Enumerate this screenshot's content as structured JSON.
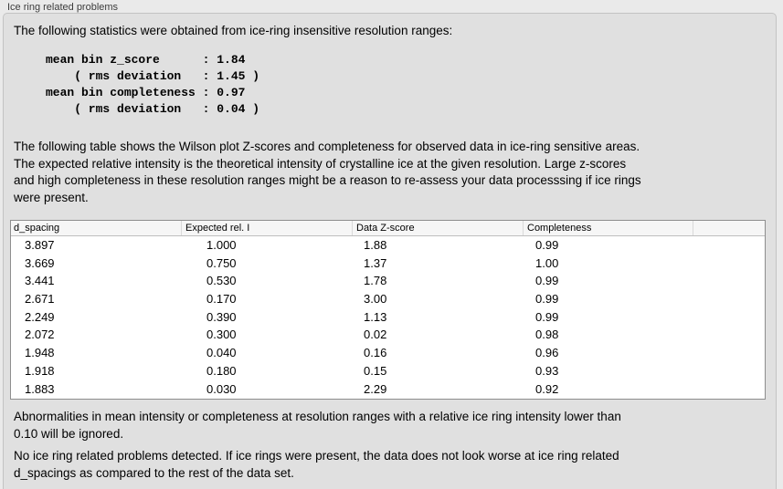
{
  "panel": {
    "title": "Ice ring related problems"
  },
  "intro": {
    "text": "The following statistics were obtained from ice-ring insensitive resolution ranges:"
  },
  "stats_block": {
    "lines": [
      "mean bin z_score      : 1.84",
      "    ( rms deviation   : 1.45 )",
      "mean bin completeness : 0.97",
      "    ( rms deviation   : 0.04 )"
    ],
    "values": {
      "mean_bin_z_score": "1.84",
      "z_score_rms_deviation": "1.45",
      "mean_bin_completeness": "0.97",
      "completeness_rms_deviation": "0.04"
    }
  },
  "table_description": "The following table shows the Wilson plot Z-scores and completeness for observed data in ice-ring sensitive areas.\nThe expected relative intensity is the theoretical intensity of crystalline ice at the given resolution. Large z-scores\nand high completeness in these resolution ranges might be a reason to re-assess your data processsing if ice rings\nwere present.",
  "table": {
    "columns": [
      "d_spacing",
      "Expected rel. I",
      "Data Z-score",
      "Completeness"
    ],
    "rows": [
      [
        "3.897",
        "1.000",
        "1.88",
        "0.99"
      ],
      [
        "3.669",
        "0.750",
        "1.37",
        "1.00"
      ],
      [
        "3.441",
        "0.530",
        "1.78",
        "0.99"
      ],
      [
        "2.671",
        "0.170",
        "3.00",
        "0.99"
      ],
      [
        "2.249",
        "0.390",
        "1.13",
        "0.99"
      ],
      [
        "2.072",
        "0.300",
        "0.02",
        "0.98"
      ],
      [
        "1.948",
        "0.040",
        "0.16",
        "0.96"
      ],
      [
        "1.918",
        "0.180",
        "0.15",
        "0.93"
      ],
      [
        "1.883",
        "0.030",
        "2.29",
        "0.92"
      ]
    ]
  },
  "notes": {
    "ignore_note": "Abnormalities in mean intensity or completeness at resolution ranges with a relative ice ring intensity lower than\n0.10 will be ignored.",
    "conclusion": "No ice ring related problems detected. If ice rings were present, the data does not look worse at ice ring related\nd_spacings as compared to the rest of the data set."
  },
  "colors": {
    "window_bg": "#eaeaea",
    "panel_bg": "#e0e0e0",
    "panel_border": "#c3c3c3",
    "table_border": "#8e8e8e",
    "table_header_bg": "#f6f6f6",
    "table_body_bg": "#ffffff",
    "text": "#000000",
    "label_text": "#3c3c3c"
  }
}
